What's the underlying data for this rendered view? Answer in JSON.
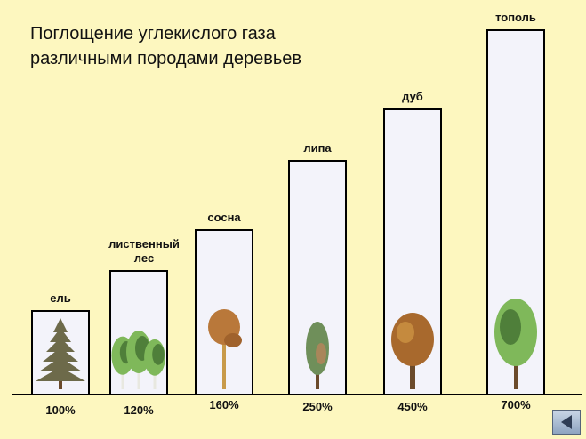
{
  "title_lines": [
    "Поглощение углекислого газа",
    "различными породами деревьев"
  ],
  "colors": {
    "background": "#fdf7bf",
    "bar_fill": "#f3f3fa",
    "bar_stroke": "#000000",
    "foliage_dark": "#4f7f3a",
    "foliage_light": "#7fb85a",
    "foliage_autumn": "#b9783a",
    "trunk": "#6b4a2b"
  },
  "chart_data": {
    "type": "bar",
    "title": "Поглощение углекислого газа различными породами деревьев",
    "categories": [
      [
        "ель"
      ],
      [
        "лиственный",
        "лес"
      ],
      [
        "сосна"
      ],
      [
        "липа"
      ],
      [
        "дуб"
      ],
      [
        "тополь"
      ]
    ],
    "values": [
      100,
      120,
      160,
      250,
      450,
      700
    ],
    "value_labels": [
      "100%",
      "120%",
      "160%",
      "250%",
      "450%",
      "700%"
    ],
    "tree_icons": [
      "spruce-icon",
      "deciduous-forest-icon",
      "pine-icon",
      "linden-icon",
      "oak-icon",
      "poplar-icon"
    ],
    "xlabel": "",
    "ylabel": "",
    "grid": false,
    "legend": "none"
  },
  "nav": {
    "icon": "back-arrow-icon"
  }
}
